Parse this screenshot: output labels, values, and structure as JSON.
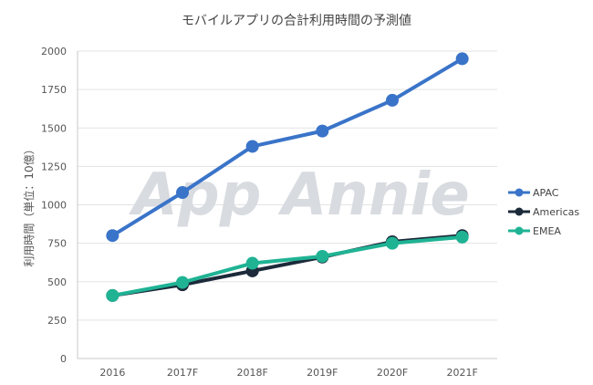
{
  "chart_data": {
    "type": "line",
    "title": "モバイルアプリの合計利用時間の予測値",
    "xlabel": "",
    "ylabel": "利用時間（単位：10億）",
    "categories": [
      "2016",
      "2017F",
      "2018F",
      "2019F",
      "2020F",
      "2021F"
    ],
    "ylim": [
      0,
      2000
    ],
    "yticks": [
      "0",
      "250",
      "500",
      "750",
      "1000",
      "1250",
      "1500",
      "1750",
      "2000"
    ],
    "grid": true,
    "legend_position": "right",
    "watermark": "App Annie",
    "series": [
      {
        "name": "APAC",
        "color": "#3a74c9",
        "values": [
          800,
          1080,
          1380,
          1480,
          1680,
          1950
        ]
      },
      {
        "name": "Americas",
        "color": "#1c2a3a",
        "values": [
          410,
          480,
          570,
          660,
          760,
          800
        ]
      },
      {
        "name": "EMEA",
        "color": "#1fb394",
        "values": [
          410,
          495,
          620,
          665,
          750,
          790
        ]
      }
    ]
  }
}
